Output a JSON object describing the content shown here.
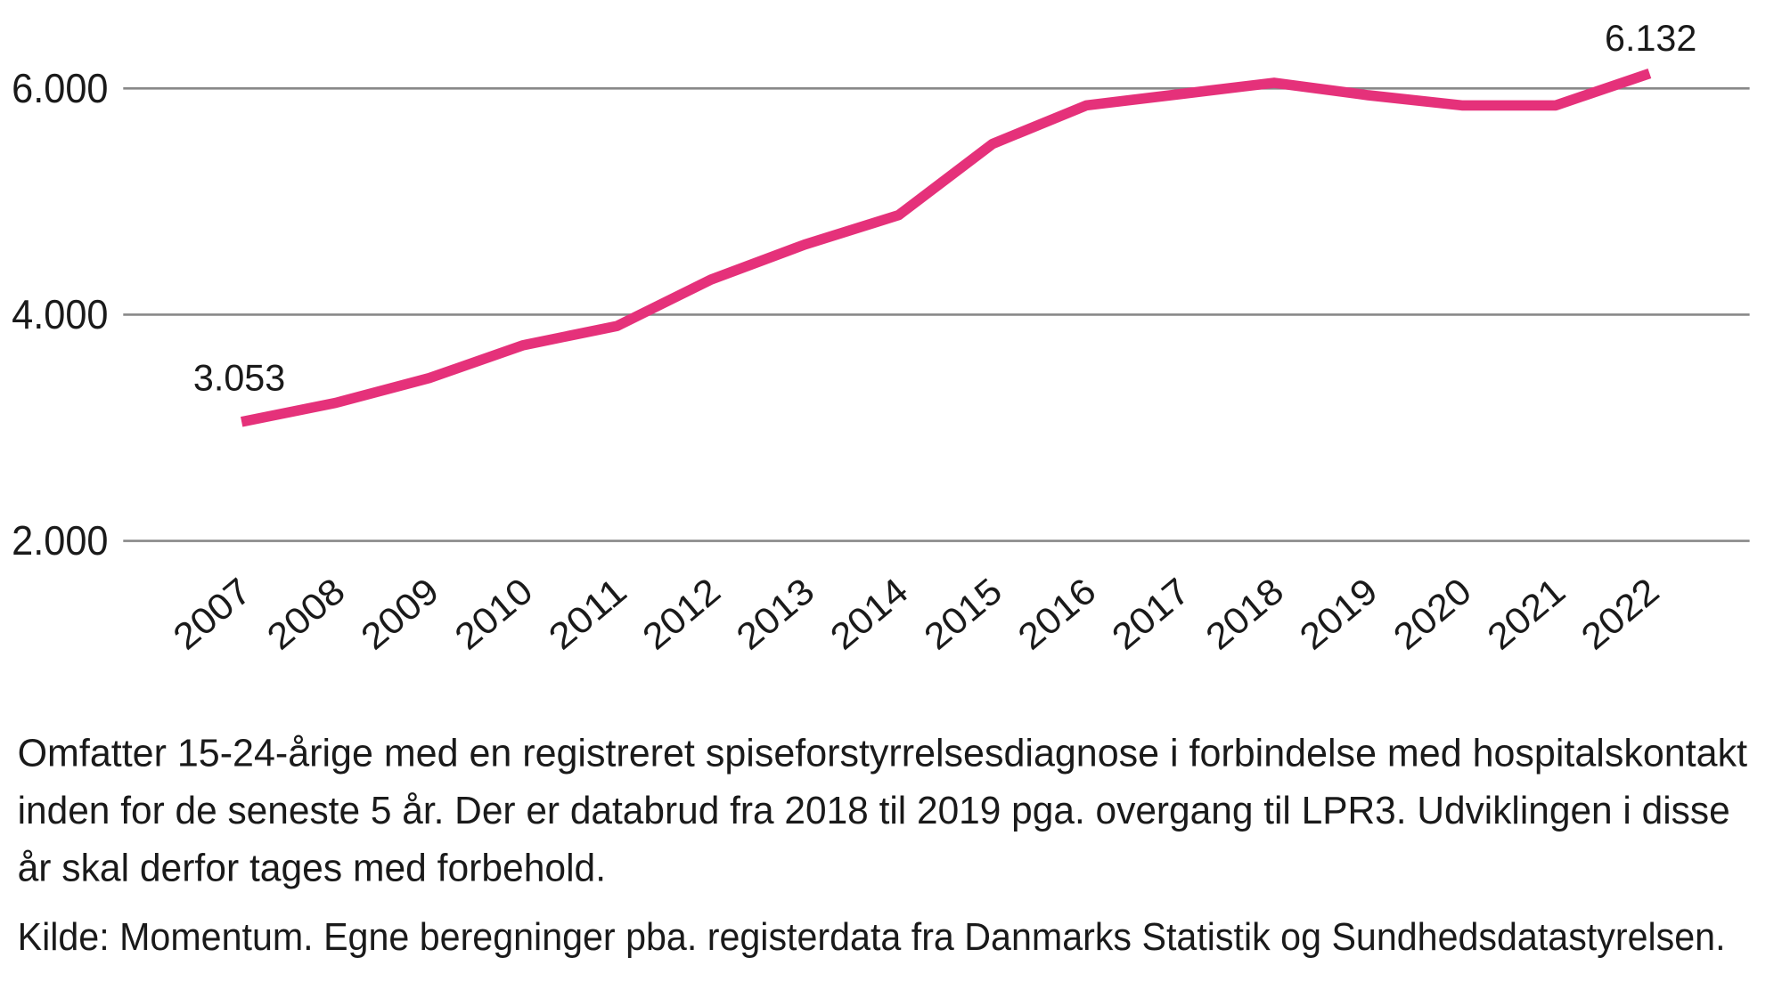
{
  "chart_data": {
    "type": "line",
    "x": [
      "2007",
      "2008",
      "2009",
      "2010",
      "2011",
      "2012",
      "2013",
      "2014",
      "2015",
      "2016",
      "2017",
      "2018",
      "2019",
      "2020",
      "2021",
      "2022"
    ],
    "series": [
      {
        "values": [
          3053,
          3220,
          3440,
          3730,
          3900,
          4310,
          4620,
          4880,
          5510,
          5850,
          5950,
          6050,
          5940,
          5850,
          5850,
          6132
        ],
        "color": "#e5317a"
      }
    ],
    "ylim": [
      2000,
      6000
    ],
    "yticks": [
      "2.000",
      "4.000",
      "6.000"
    ],
    "ytick_values": [
      2000,
      4000,
      6000
    ],
    "grid": "horizontal",
    "data_labels": {
      "first": "3.053",
      "last": "6.132"
    },
    "title": "",
    "xlabel": "",
    "ylabel": ""
  },
  "caption": {
    "lines": [
      "Omfatter 15-24-årige med en registreret spiseforstyrrelsesdiagnose i forbindelse med hospitalskontakt",
      "inden for de seneste 5 år. Der er databrud fra 2018 til 2019 pga. overgang til LPR3. Udviklingen i disse",
      "år skal derfor tages med forbehold."
    ],
    "source": "Kilde: Momentum. Egne beregninger pba. registerdata fra Danmarks Statistik og Sundhedsdatastyrelsen."
  }
}
